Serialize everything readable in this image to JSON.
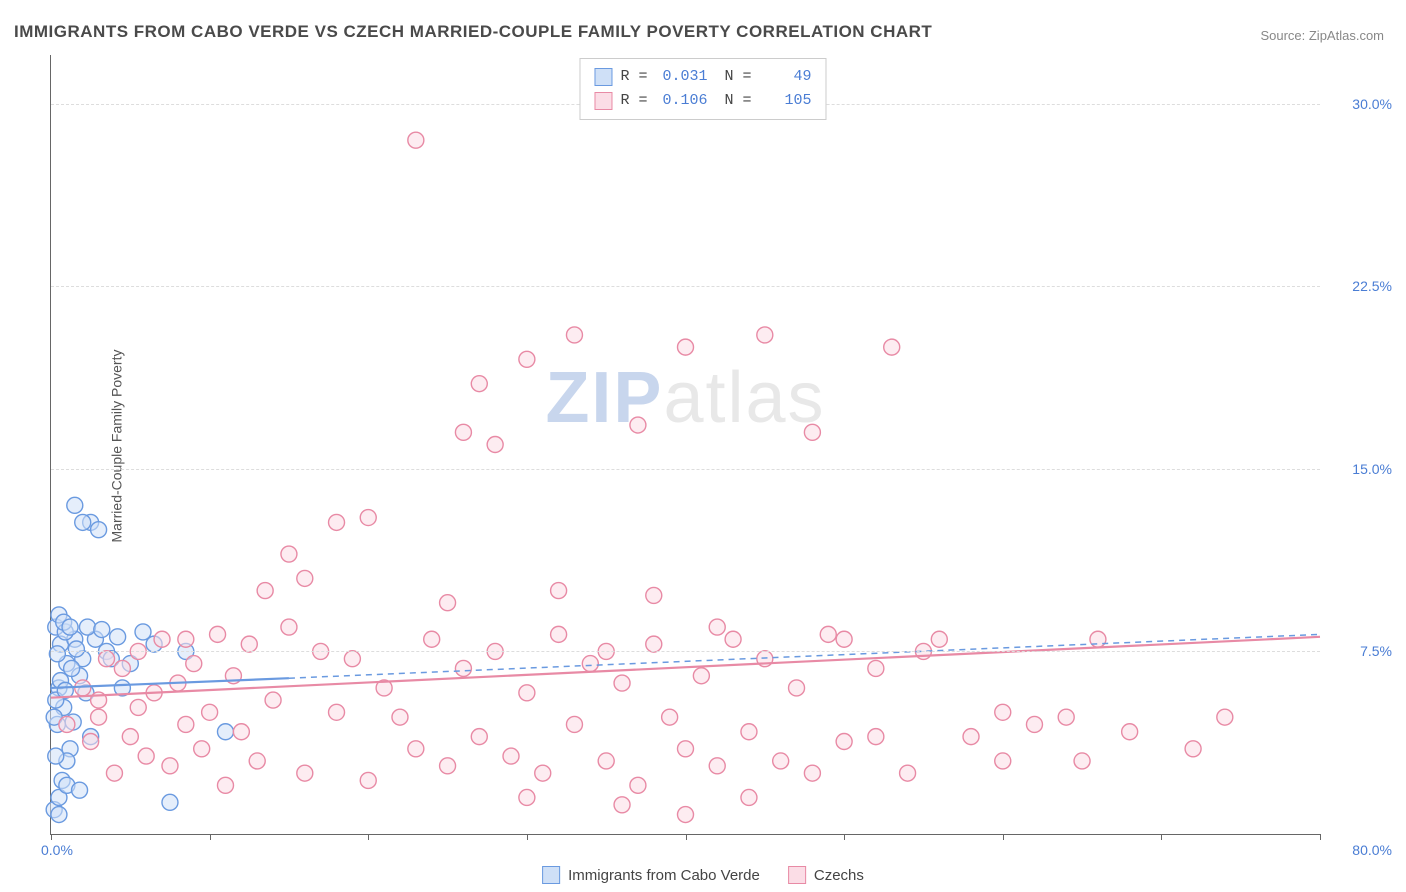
{
  "title": "IMMIGRANTS FROM CABO VERDE VS CZECH MARRIED-COUPLE FAMILY POVERTY CORRELATION CHART",
  "source": "Source: ZipAtlas.com",
  "yaxis_title": "Married-Couple Family Poverty",
  "watermark": {
    "part1": "ZIP",
    "part2": "atlas"
  },
  "chart": {
    "type": "scatter",
    "background_color": "#ffffff",
    "grid_color": "#dddddd",
    "axis_color": "#666666",
    "xlim": [
      0,
      80
    ],
    "ylim": [
      0,
      32
    ],
    "xtick_positions": [
      0,
      10,
      20,
      30,
      40,
      50,
      60,
      70,
      80
    ],
    "ytick_positions": [
      7.5,
      15.0,
      22.5,
      30.0
    ],
    "ytick_labels": [
      "7.5%",
      "15.0%",
      "22.5%",
      "30.0%"
    ],
    "xlabel_min": "0.0%",
    "xlabel_max": "80.0%",
    "marker_radius": 8,
    "marker_stroke_width": 1.4,
    "trend_line_width": 2.2,
    "trend_dash": "6 5",
    "series": [
      {
        "key": "cabo_verde",
        "name": "Immigrants from Cabo Verde",
        "fill": "#cfe0f7",
        "stroke": "#6a9ae0",
        "fill_opacity": 0.55,
        "stats": {
          "R": "0.031",
          "N": "49"
        },
        "trend": {
          "x1": 0,
          "y1": 6.0,
          "x2": 15,
          "y2": 6.4,
          "extend_to": 80,
          "extend_y": 8.2
        },
        "points": [
          [
            0.3,
            8.5
          ],
          [
            0.5,
            6.0
          ],
          [
            0.4,
            4.5
          ],
          [
            0.6,
            7.8
          ],
          [
            0.8,
            5.2
          ],
          [
            1.0,
            7.0
          ],
          [
            1.2,
            3.5
          ],
          [
            0.2,
            1.0
          ],
          [
            0.5,
            1.5
          ],
          [
            1.5,
            8.0
          ],
          [
            1.8,
            6.5
          ],
          [
            2.0,
            7.2
          ],
          [
            2.2,
            5.8
          ],
          [
            2.5,
            4.0
          ],
          [
            0.7,
            2.2
          ],
          [
            1.0,
            3.0
          ],
          [
            0.3,
            5.5
          ],
          [
            0.9,
            8.3
          ],
          [
            1.3,
            6.8
          ],
          [
            0.4,
            7.4
          ],
          [
            2.8,
            8.0
          ],
          [
            3.5,
            7.5
          ],
          [
            4.2,
            8.1
          ],
          [
            5.0,
            7.0
          ],
          [
            5.8,
            8.3
          ],
          [
            6.5,
            7.8
          ],
          [
            7.5,
            1.3
          ],
          [
            8.5,
            7.5
          ],
          [
            1.5,
            13.5
          ],
          [
            2.5,
            12.8
          ],
          [
            3.0,
            12.5
          ],
          [
            2.0,
            12.8
          ],
          [
            0.5,
            9.0
          ],
          [
            0.8,
            8.7
          ],
          [
            1.2,
            8.5
          ],
          [
            3.8,
            7.2
          ],
          [
            4.5,
            6.0
          ],
          [
            0.2,
            4.8
          ],
          [
            0.6,
            6.3
          ],
          [
            11.0,
            4.2
          ],
          [
            0.3,
            3.2
          ],
          [
            1.0,
            2.0
          ],
          [
            1.8,
            1.8
          ],
          [
            0.5,
            0.8
          ],
          [
            2.3,
            8.5
          ],
          [
            1.6,
            7.6
          ],
          [
            0.9,
            5.9
          ],
          [
            1.4,
            4.6
          ],
          [
            3.2,
            8.4
          ]
        ]
      },
      {
        "key": "czechs",
        "name": "Czechs",
        "fill": "#fbdde6",
        "stroke": "#e88aa5",
        "fill_opacity": 0.55,
        "stats": {
          "R": "0.106",
          "N": "105"
        },
        "trend": {
          "x1": 0,
          "y1": 5.6,
          "x2": 80,
          "y2": 8.1
        },
        "points": [
          [
            1,
            4.5
          ],
          [
            2,
            6.0
          ],
          [
            2.5,
            3.8
          ],
          [
            3,
            5.5
          ],
          [
            3.5,
            7.2
          ],
          [
            4,
            2.5
          ],
          [
            4.5,
            6.8
          ],
          [
            5,
            4.0
          ],
          [
            5.5,
            7.5
          ],
          [
            6,
            3.2
          ],
          [
            6.5,
            5.8
          ],
          [
            7,
            8.0
          ],
          [
            7.5,
            2.8
          ],
          [
            8,
            6.2
          ],
          [
            8.5,
            4.5
          ],
          [
            9,
            7.0
          ],
          [
            9.5,
            3.5
          ],
          [
            10,
            5.0
          ],
          [
            10.5,
            8.2
          ],
          [
            11,
            2.0
          ],
          [
            11.5,
            6.5
          ],
          [
            12,
            4.2
          ],
          [
            12.5,
            7.8
          ],
          [
            13,
            3.0
          ],
          [
            14,
            5.5
          ],
          [
            15,
            8.5
          ],
          [
            16,
            2.5
          ],
          [
            17,
            7.5
          ],
          [
            18,
            5.0
          ],
          [
            19,
            7.2
          ],
          [
            20,
            2.2
          ],
          [
            21,
            6.0
          ],
          [
            22,
            4.8
          ],
          [
            23,
            3.5
          ],
          [
            24,
            8.0
          ],
          [
            25,
            2.8
          ],
          [
            26,
            6.8
          ],
          [
            27,
            4.0
          ],
          [
            28,
            7.5
          ],
          [
            29,
            3.2
          ],
          [
            30,
            5.8
          ],
          [
            31,
            2.5
          ],
          [
            32,
            8.2
          ],
          [
            33,
            4.5
          ],
          [
            34,
            7.0
          ],
          [
            35,
            3.0
          ],
          [
            36,
            6.2
          ],
          [
            37,
            2.0
          ],
          [
            38,
            7.8
          ],
          [
            39,
            4.8
          ],
          [
            40,
            3.5
          ],
          [
            41,
            6.5
          ],
          [
            42,
            2.8
          ],
          [
            43,
            8.0
          ],
          [
            44,
            4.2
          ],
          [
            45,
            7.2
          ],
          [
            46,
            3.0
          ],
          [
            47,
            6.0
          ],
          [
            49,
            8.2
          ],
          [
            50,
            3.8
          ],
          [
            52,
            6.8
          ],
          [
            54,
            2.5
          ],
          [
            56,
            8.0
          ],
          [
            58,
            4.0
          ],
          [
            60,
            5.0
          ],
          [
            62,
            4.5
          ],
          [
            65,
            3.0
          ],
          [
            68,
            4.2
          ],
          [
            72,
            3.5
          ],
          [
            74,
            4.8
          ],
          [
            16,
            10.5
          ],
          [
            18,
            12.8
          ],
          [
            20,
            13.0
          ],
          [
            25,
            9.5
          ],
          [
            26,
            16.5
          ],
          [
            27,
            18.5
          ],
          [
            28,
            16.0
          ],
          [
            30,
            19.5
          ],
          [
            32,
            10.0
          ],
          [
            33,
            20.5
          ],
          [
            35,
            7.5
          ],
          [
            37,
            16.8
          ],
          [
            38,
            9.8
          ],
          [
            40,
            20.0
          ],
          [
            42,
            8.5
          ],
          [
            45,
            20.5
          ],
          [
            48,
            16.5
          ],
          [
            50,
            8.0
          ],
          [
            53,
            20.0
          ],
          [
            55,
            7.5
          ],
          [
            60,
            3.0
          ],
          [
            64,
            4.8
          ],
          [
            66,
            8.0
          ],
          [
            23,
            28.5
          ],
          [
            15,
            11.5
          ],
          [
            13.5,
            10.0
          ],
          [
            3,
            4.8
          ],
          [
            5.5,
            5.2
          ],
          [
            8.5,
            8.0
          ],
          [
            52,
            4.0
          ],
          [
            48,
            2.5
          ],
          [
            44,
            1.5
          ],
          [
            40,
            0.8
          ],
          [
            36,
            1.2
          ],
          [
            30,
            1.5
          ]
        ]
      }
    ]
  },
  "colors": {
    "title_text": "#4a4a4a",
    "source_text": "#888888",
    "tick_text": "#4a7dd4",
    "axis_title_text": "#555555"
  }
}
